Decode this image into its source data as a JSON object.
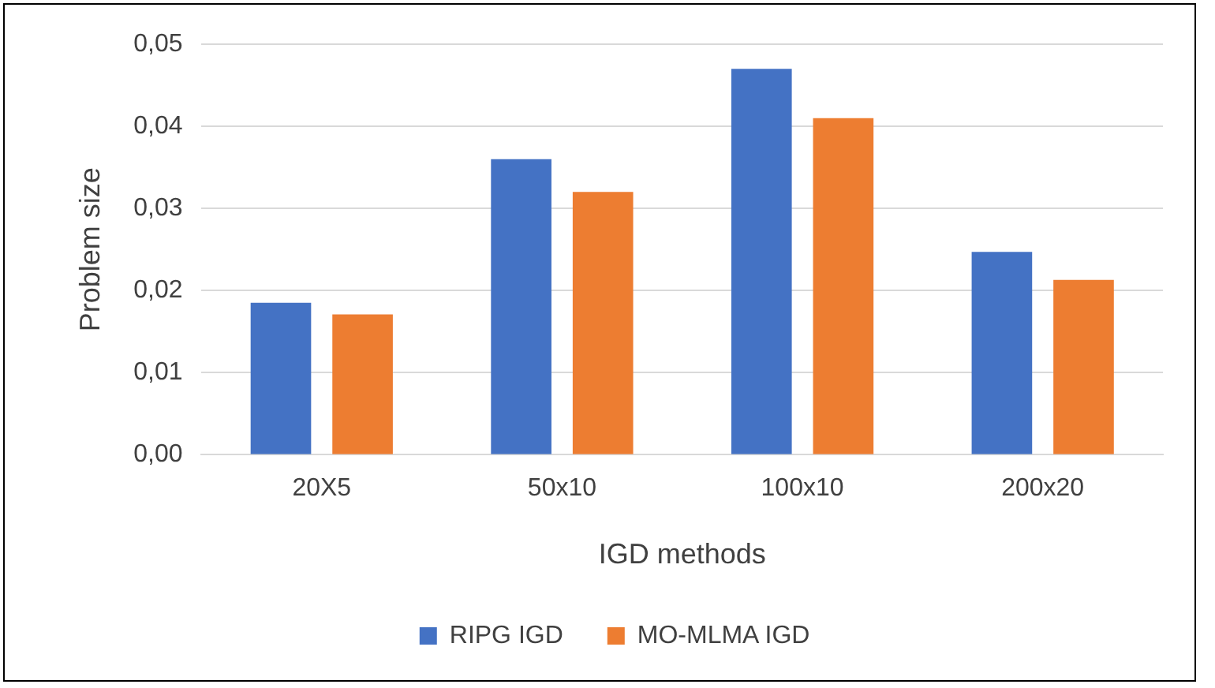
{
  "chart_data": {
    "type": "bar",
    "xlabel": "IGD methods",
    "ylabel": "Problem size",
    "categories": [
      "20X5",
      "50x10",
      "100x10",
      "200x20"
    ],
    "series": [
      {
        "name": "RIPG IGD",
        "color": "#4472c4",
        "values": [
          0.0185,
          0.036,
          0.047,
          0.0247
        ]
      },
      {
        "name": "MO-MLMA IGD",
        "color": "#ed7d31",
        "values": [
          0.0171,
          0.032,
          0.041,
          0.0213
        ]
      }
    ],
    "ylim": [
      0,
      0.05
    ],
    "yticks": [
      {
        "value": 0,
        "label": "0,00"
      },
      {
        "value": 0.01,
        "label": "0,01"
      },
      {
        "value": 0.02,
        "label": "0,02"
      },
      {
        "value": 0.03,
        "label": "0,03"
      },
      {
        "value": 0.04,
        "label": "0,04"
      },
      {
        "value": 0.05,
        "label": "0,05"
      }
    ],
    "grid": "y",
    "legend": "bottom"
  }
}
